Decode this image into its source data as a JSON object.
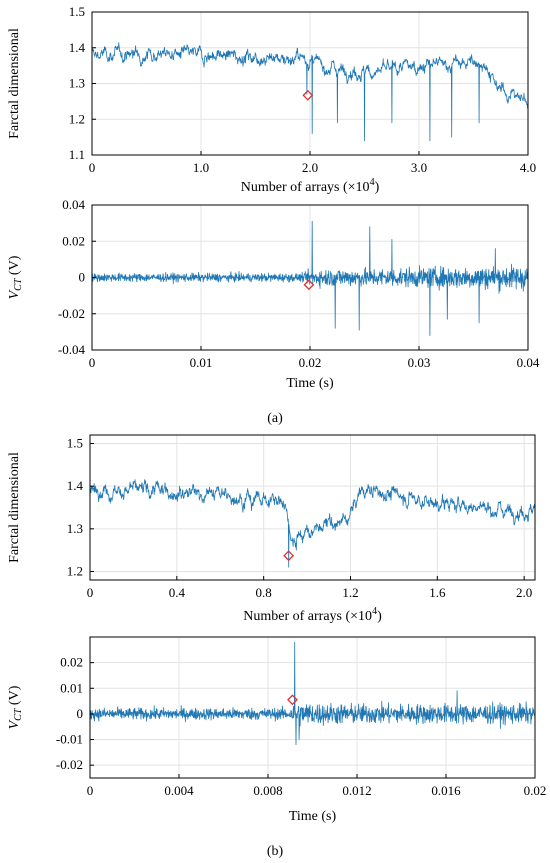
{
  "chart_data": [
    {
      "id": "a_top",
      "type": "line",
      "xlabel": "Number of arrays",
      "xlabel_unit": "(×10",
      "xlabel_exp": "4",
      "xlabel_close": ")",
      "ylabel": "Farctal dimensional",
      "xlim": [
        0,
        4.0
      ],
      "ylim": [
        1.1,
        1.5
      ],
      "xticks": [
        0,
        1.0,
        2.0,
        3.0,
        4.0
      ],
      "xtick_labels": [
        "0",
        "1.0",
        "2.0",
        "3.0",
        "4.0"
      ],
      "yticks": [
        1.1,
        1.2,
        1.3,
        1.4,
        1.5
      ],
      "ytick_labels": [
        "1.1",
        "1.2",
        "1.3",
        "1.4",
        "1.5"
      ],
      "grid": true,
      "series": [
        {
          "color": "#1f77b4",
          "profile": [
            [
              0,
              1.38
            ],
            [
              0.5,
              1.385
            ],
            [
              1.0,
              1.38
            ],
            [
              1.5,
              1.375
            ],
            [
              1.95,
              1.37
            ],
            [
              2.1,
              1.35
            ],
            [
              2.5,
              1.33
            ],
            [
              3.0,
              1.35
            ],
            [
              3.6,
              1.36
            ],
            [
              3.7,
              1.29
            ],
            [
              4.0,
              1.25
            ]
          ],
          "noise": 0.022,
          "spikes": [
            [
              1.97,
              1.27
            ],
            [
              2.02,
              1.16
            ],
            [
              2.25,
              1.19
            ],
            [
              2.5,
              1.14
            ],
            [
              2.75,
              1.19
            ],
            [
              3.1,
              1.14
            ],
            [
              3.3,
              1.15
            ],
            [
              3.55,
              1.19
            ]
          ]
        }
      ],
      "markers": [
        {
          "x": 1.98,
          "y": 1.267,
          "shape": "diamond",
          "color": "#e03030"
        }
      ]
    },
    {
      "id": "a_bottom",
      "type": "line",
      "xlabel": "Time (s)",
      "ylabel": "V",
      "ylabel_sub": "CT",
      "ylabel_unit": "(V)",
      "xlim": [
        0,
        0.04
      ],
      "ylim": [
        -0.04,
        0.04
      ],
      "xticks": [
        0,
        0.01,
        0.02,
        0.03,
        0.04
      ],
      "xtick_labels": [
        "0",
        "0.01",
        "0.02",
        "0.03",
        "0.04"
      ],
      "yticks": [
        -0.04,
        -0.02,
        0,
        0.02,
        0.04
      ],
      "ytick_labels": [
        "-0.04",
        "-0.02",
        "0",
        "0.02",
        "0.04"
      ],
      "grid": true,
      "series": [
        {
          "color": "#1f77b4",
          "profile": [
            [
              0,
              0
            ],
            [
              0.04,
              0
            ]
          ],
          "noise_envelope": [
            [
              0,
              0.003
            ],
            [
              0.0195,
              0.003
            ],
            [
              0.02,
              0.006
            ],
            [
              0.03,
              0.007
            ],
            [
              0.04,
              0.009
            ]
          ],
          "spikes": [
            [
              0.0202,
              0.031
            ],
            [
              0.0223,
              -0.028
            ],
            [
              0.0245,
              -0.029
            ],
            [
              0.0255,
              0.028
            ],
            [
              0.0275,
              0.021
            ],
            [
              0.031,
              -0.032
            ],
            [
              0.0326,
              -0.023
            ],
            [
              0.0355,
              -0.025
            ],
            [
              0.037,
              0.016
            ]
          ]
        }
      ],
      "markers": [
        {
          "x": 0.0199,
          "y": -0.004,
          "shape": "diamond",
          "color": "#e03030"
        }
      ]
    },
    {
      "id": "b_top",
      "type": "line",
      "xlabel": "Number of arrays",
      "xlabel_unit": "(×10",
      "xlabel_exp": "4",
      "xlabel_close": ")",
      "ylabel": "Farctal dimensional",
      "xlim": [
        0,
        2.05
      ],
      "ylim": [
        1.18,
        1.52
      ],
      "xticks": [
        0,
        0.4,
        0.8,
        1.2,
        1.6,
        2.0
      ],
      "xtick_labels": [
        "0",
        "0.4",
        "0.8",
        "1.2",
        "1.6",
        "2.0"
      ],
      "yticks": [
        1.2,
        1.3,
        1.4,
        1.5
      ],
      "ytick_labels": [
        "1.2",
        "1.3",
        "1.4",
        "1.5"
      ],
      "grid": true,
      "series": [
        {
          "color": "#1f77b4",
          "profile": [
            [
              0,
              1.39
            ],
            [
              0.2,
              1.39
            ],
            [
              0.4,
              1.39
            ],
            [
              0.6,
              1.38
            ],
            [
              0.8,
              1.37
            ],
            [
              0.9,
              1.36
            ],
            [
              0.93,
              1.28
            ],
            [
              1.0,
              1.29
            ],
            [
              1.1,
              1.31
            ],
            [
              1.18,
              1.32
            ],
            [
              1.25,
              1.39
            ],
            [
              1.4,
              1.38
            ],
            [
              1.6,
              1.36
            ],
            [
              1.8,
              1.35
            ],
            [
              2.05,
              1.34
            ]
          ],
          "noise": 0.02,
          "spikes": [
            [
              0.915,
              1.21
            ],
            [
              0.95,
              1.25
            ]
          ]
        }
      ],
      "markers": [
        {
          "x": 0.915,
          "y": 1.237,
          "shape": "diamond",
          "color": "#e03030"
        }
      ]
    },
    {
      "id": "b_bottom",
      "type": "line",
      "xlabel": "Time (s)",
      "ylabel": "V",
      "ylabel_sub": "CT",
      "ylabel_unit": "(V)",
      "xlim": [
        0,
        0.02
      ],
      "ylim": [
        -0.025,
        0.03
      ],
      "xticks": [
        0,
        0.004,
        0.008,
        0.012,
        0.016,
        0.02
      ],
      "xtick_labels": [
        "0",
        "0.004",
        "0.008",
        "0.012",
        "0.016",
        "0.02"
      ],
      "yticks": [
        -0.02,
        -0.01,
        0,
        0.01,
        0.02
      ],
      "ytick_labels": [
        "-0.02",
        "-0.01",
        "0",
        "0.01",
        "0.02"
      ],
      "grid": true,
      "series": [
        {
          "color": "#1f77b4",
          "profile": [
            [
              0,
              0
            ],
            [
              0.02,
              0
            ]
          ],
          "noise_envelope": [
            [
              0,
              0.003
            ],
            [
              0.009,
              0.003
            ],
            [
              0.0092,
              0.006
            ],
            [
              0.012,
              0.005
            ],
            [
              0.02,
              0.005
            ]
          ],
          "spikes": [
            [
              0.0092,
              0.028
            ],
            [
              0.00925,
              -0.012
            ],
            [
              0.0094,
              -0.01
            ],
            [
              0.0165,
              0.009
            ]
          ]
        }
      ],
      "markers": [
        {
          "x": 0.0091,
          "y": 0.0055,
          "shape": "diamond",
          "color": "#e03030"
        }
      ]
    }
  ],
  "captions": {
    "a": "(a)",
    "b": "(b)"
  }
}
